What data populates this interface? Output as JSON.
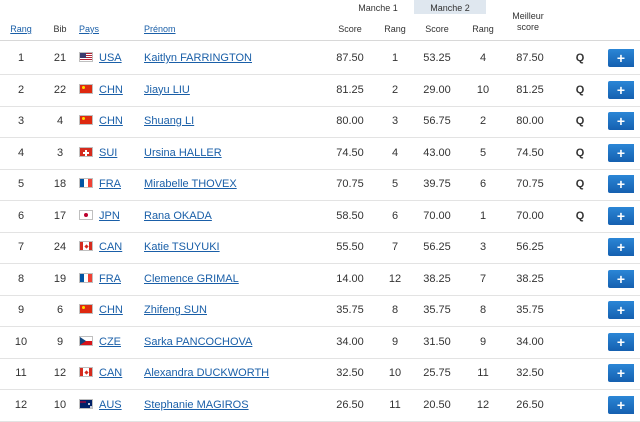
{
  "header": {
    "rang": "Rang",
    "bib": "Bib",
    "pays": "Pays",
    "prenom": "Prénom",
    "manche1": "Manche 1",
    "manche2": "Manche 2",
    "score": "Score",
    "rang_col": "Rang",
    "meilleur_line1": "Meilleur",
    "meilleur_line2": "score"
  },
  "details_button_label": "+",
  "rows": [
    {
      "rank": "1",
      "bib": "21",
      "flag": "usa",
      "country": "USA",
      "name": "Kaitlyn FARRINGTON",
      "m1_score": "87.50",
      "m1_rank": "1",
      "m2_score": "53.25",
      "m2_rank": "4",
      "best": "87.50",
      "q": "Q"
    },
    {
      "rank": "2",
      "bib": "22",
      "flag": "chn",
      "country": "CHN",
      "name": "Jiayu LIU",
      "m1_score": "81.25",
      "m1_rank": "2",
      "m2_score": "29.00",
      "m2_rank": "10",
      "best": "81.25",
      "q": "Q"
    },
    {
      "rank": "3",
      "bib": "4",
      "flag": "chn",
      "country": "CHN",
      "name": "Shuang LI",
      "m1_score": "80.00",
      "m1_rank": "3",
      "m2_score": "56.75",
      "m2_rank": "2",
      "best": "80.00",
      "q": "Q"
    },
    {
      "rank": "4",
      "bib": "3",
      "flag": "sui",
      "country": "SUI",
      "name": "Ursina HALLER",
      "m1_score": "74.50",
      "m1_rank": "4",
      "m2_score": "43.00",
      "m2_rank": "5",
      "best": "74.50",
      "q": "Q"
    },
    {
      "rank": "5",
      "bib": "18",
      "flag": "fra",
      "country": "FRA",
      "name": "Mirabelle THOVEX",
      "m1_score": "70.75",
      "m1_rank": "5",
      "m2_score": "39.75",
      "m2_rank": "6",
      "best": "70.75",
      "q": "Q"
    },
    {
      "rank": "6",
      "bib": "17",
      "flag": "jpn",
      "country": "JPN",
      "name": "Rana OKADA",
      "m1_score": "58.50",
      "m1_rank": "6",
      "m2_score": "70.00",
      "m2_rank": "1",
      "best": "70.00",
      "q": "Q"
    },
    {
      "rank": "7",
      "bib": "24",
      "flag": "can",
      "country": "CAN",
      "name": "Katie TSUYUKI",
      "m1_score": "55.50",
      "m1_rank": "7",
      "m2_score": "56.25",
      "m2_rank": "3",
      "best": "56.25",
      "q": ""
    },
    {
      "rank": "8",
      "bib": "19",
      "flag": "fra",
      "country": "FRA",
      "name": "Clemence GRIMAL",
      "m1_score": "14.00",
      "m1_rank": "12",
      "m2_score": "38.25",
      "m2_rank": "7",
      "best": "38.25",
      "q": ""
    },
    {
      "rank": "9",
      "bib": "6",
      "flag": "chn",
      "country": "CHN",
      "name": "Zhifeng SUN",
      "m1_score": "35.75",
      "m1_rank": "8",
      "m2_score": "35.75",
      "m2_rank": "8",
      "best": "35.75",
      "q": ""
    },
    {
      "rank": "10",
      "bib": "9",
      "flag": "cze",
      "country": "CZE",
      "name": "Sarka PANCOCHOVA",
      "m1_score": "34.00",
      "m1_rank": "9",
      "m2_score": "31.50",
      "m2_rank": "9",
      "best": "34.00",
      "q": ""
    },
    {
      "rank": "11",
      "bib": "12",
      "flag": "can",
      "country": "CAN",
      "name": "Alexandra DUCKWORTH",
      "m1_score": "32.50",
      "m1_rank": "10",
      "m2_score": "25.75",
      "m2_rank": "11",
      "best": "32.50",
      "q": ""
    },
    {
      "rank": "12",
      "bib": "10",
      "flag": "aus",
      "country": "AUS",
      "name": "Stephanie MAGIROS",
      "m1_score": "26.50",
      "m1_rank": "11",
      "m2_score": "20.50",
      "m2_rank": "12",
      "best": "26.50",
      "q": ""
    }
  ]
}
